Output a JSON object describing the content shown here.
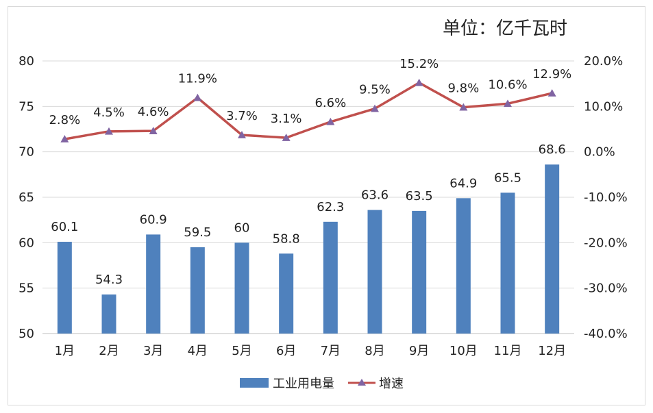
{
  "chart_data": {
    "type": "bar+line",
    "unit_label": "单位：亿千瓦时",
    "categories": [
      "1月",
      "2月",
      "3月",
      "4月",
      "5月",
      "6月",
      "7月",
      "8月",
      "9月",
      "10月",
      "11月",
      "12月"
    ],
    "bars": {
      "name": "工业用电量",
      "values": [
        60.1,
        54.3,
        60.9,
        59.5,
        60,
        58.8,
        62.3,
        63.6,
        63.5,
        64.9,
        65.5,
        68.6
      ],
      "labels": [
        "60.1",
        "54.3",
        "60.9",
        "59.5",
        "60",
        "58.8",
        "62.3",
        "63.6",
        "63.5",
        "64.9",
        "65.5",
        "68.6"
      ],
      "color": "#4F81BD"
    },
    "line": {
      "name": "增速",
      "values": [
        2.8,
        4.5,
        4.6,
        11.9,
        3.7,
        3.1,
        6.6,
        9.5,
        15.2,
        9.8,
        10.6,
        12.9
      ],
      "labels": [
        "2.8%",
        "4.5%",
        "4.6%",
        "11.9%",
        "3.7%",
        "3.1%",
        "6.6%",
        "9.5%",
        "15.2%",
        "9.8%",
        "10.6%",
        "12.9%"
      ],
      "color": "#C0504D",
      "marker_color": "#8064A2"
    },
    "y_left": {
      "min": 50,
      "max": 80,
      "ticks": [
        50,
        55,
        60,
        65,
        70,
        75,
        80
      ],
      "tick_labels": [
        "50",
        "55",
        "60",
        "65",
        "70",
        "75",
        "80"
      ]
    },
    "y_right": {
      "min": -40,
      "max": 20,
      "ticks": [
        -40,
        -30,
        -20,
        -10,
        0,
        10,
        20
      ],
      "tick_labels": [
        "-40.0%",
        "-30.0%",
        "-20.0%",
        "-10.0%",
        "0.0%",
        "10.0%",
        "20.0%"
      ]
    },
    "grid": true,
    "legend_position": "bottom"
  }
}
